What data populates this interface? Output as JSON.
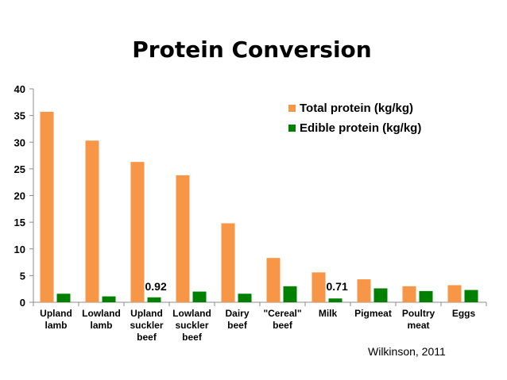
{
  "chart_data": {
    "type": "bar",
    "title": "Protein Conversion",
    "categories": [
      [
        "Upland",
        "lamb"
      ],
      [
        "Lowland",
        "lamb"
      ],
      [
        "Upland",
        "suckler",
        "beef"
      ],
      [
        "Lowland",
        "suckler",
        "beef"
      ],
      [
        "Dairy",
        "beef"
      ],
      [
        "\"Cereal\"",
        "beef"
      ],
      [
        "Milk"
      ],
      [
        "Pigmeat"
      ],
      [
        "Poultry",
        "meat"
      ],
      [
        "Eggs"
      ]
    ],
    "series": [
      {
        "name": "Total protein (kg/kg)",
        "color": "#F79646",
        "values": [
          35.7,
          30.3,
          26.3,
          23.8,
          14.8,
          8.3,
          5.6,
          4.3,
          3.0,
          3.2
        ]
      },
      {
        "name": "Edible protein (kg/kg)",
        "color": "#008000",
        "values": [
          1.6,
          1.1,
          0.92,
          2.0,
          1.6,
          3.0,
          0.71,
          2.6,
          2.1,
          2.3
        ]
      }
    ],
    "ylim": [
      0,
      40
    ],
    "yticks": [
      0,
      5,
      10,
      15,
      20,
      25,
      30,
      35,
      40
    ],
    "legend_position": "top-right",
    "gridlines": false,
    "annotations": [
      {
        "text": "0.92",
        "category_index": 2
      },
      {
        "text": "0.71",
        "category_index": 6
      }
    ],
    "source": "Wilkinson, 2011"
  }
}
